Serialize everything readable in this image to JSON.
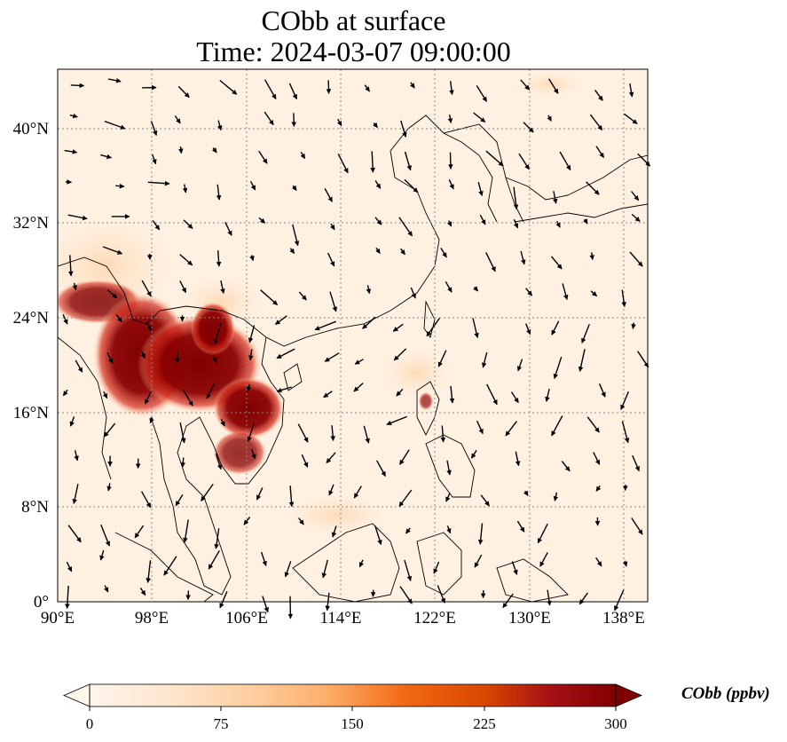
{
  "title": "CObb at surface",
  "subtitle": "Time: 2024-03-07 09:00:00",
  "map": {
    "lon_range": [
      90,
      140
    ],
    "lat_range": [
      0,
      45
    ],
    "lon_ticks": [
      "90°E",
      "98°E",
      "106°E",
      "114°E",
      "122°E",
      "130°E",
      "138°E"
    ],
    "lat_ticks": [
      "0°",
      "8°N",
      "16°N",
      "24°N",
      "32°N",
      "40°N"
    ],
    "gridlines": true,
    "field": "CObb",
    "colormap": "OrRd",
    "hotspot_region": "Indochina (Myanmar, Thailand, Laos, Vietnam)",
    "wind_vectors": true
  },
  "colorbar": {
    "label": "CObb (ppbv)",
    "ticks": [
      "0",
      "75",
      "150",
      "225",
      "300"
    ],
    "min": 0,
    "max": 300,
    "extend": "both"
  },
  "colors": {
    "low": "#fff5eb",
    "mid": "#fdae6b",
    "high": "#7f0000",
    "coast": "#000000",
    "grid": "#888888"
  }
}
